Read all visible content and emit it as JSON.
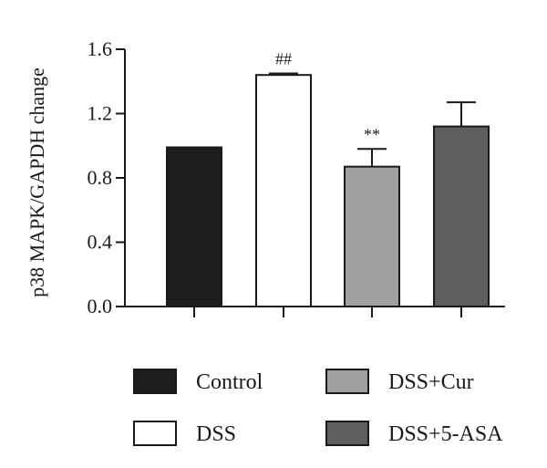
{
  "chart_data": {
    "type": "bar",
    "categories": [
      "Control",
      "DSS",
      "DSS+Cur",
      "DSS+5-ASA"
    ],
    "values": [
      0.99,
      1.44,
      0.87,
      1.12
    ],
    "errors": [
      0.0,
      0.01,
      0.11,
      0.15
    ],
    "annotations": [
      "",
      "##",
      "**",
      ""
    ],
    "colors": [
      "#1e1e1e",
      "#ffffff",
      "#a0a0a0",
      "#5e5e5e"
    ],
    "title": "",
    "xlabel": "",
    "ylabel": "p38 MAPK/GAPDH change",
    "ylim": [
      0,
      1.6
    ],
    "yticks": [
      0.0,
      0.4,
      0.8,
      1.2,
      1.6
    ],
    "ytick_labels": [
      "0.0",
      "0.4",
      "0.8",
      "1.2",
      "1.6"
    ],
    "grid": false,
    "legend_placement": "bottom"
  }
}
